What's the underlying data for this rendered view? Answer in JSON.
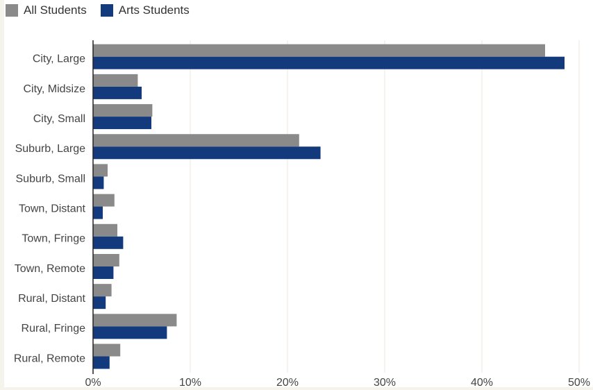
{
  "colors": {
    "all": "#8a8a8a",
    "arts": "#133a7c",
    "grid": "#ece6dc",
    "axis": "#222222"
  },
  "chart_data": {
    "type": "bar",
    "orientation": "horizontal",
    "categories": [
      "City, Large",
      "City, Midsize",
      "City, Small",
      "Suburb, Large",
      "Suburb, Small",
      "Town, Distant",
      "Town, Fringe",
      "Town, Remote",
      "Rural, Distant",
      "Rural, Fringe",
      "Rural, Remote"
    ],
    "series": [
      {
        "name": "All Students",
        "values": [
          46.5,
          4.6,
          6.1,
          21.2,
          1.5,
          2.2,
          2.5,
          2.7,
          1.9,
          8.6,
          2.8
        ]
      },
      {
        "name": "Arts Students",
        "values": [
          48.5,
          5.0,
          6.0,
          23.4,
          1.1,
          1.0,
          3.1,
          2.1,
          1.3,
          7.6,
          1.7
        ]
      }
    ],
    "xlim": [
      0,
      50
    ],
    "xticks": [
      0,
      10,
      20,
      30,
      40,
      50
    ],
    "xtick_labels": [
      "0%",
      "10%",
      "20%",
      "30%",
      "40%",
      "50%"
    ],
    "grid": true,
    "legend": "top-left"
  }
}
